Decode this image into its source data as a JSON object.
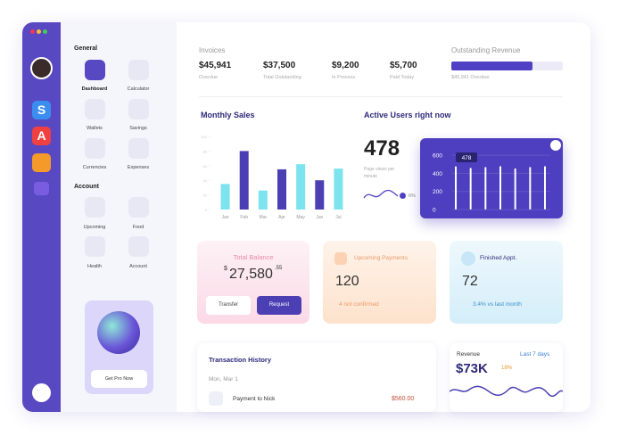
{
  "sidebar": {
    "apps": [
      "S",
      "A"
    ]
  },
  "nav": {
    "general_title": "General",
    "general": [
      "Dashboard",
      "Calculator",
      "Wallets",
      "Savings",
      "Currencies",
      "Expenses"
    ],
    "account_title": "Account",
    "account": [
      "Upcoming",
      "Food",
      "Health",
      "Account"
    ],
    "promo_button": "Get Pro Now"
  },
  "summary": {
    "title": "Invoices",
    "items": [
      {
        "value": "$45,941",
        "label": "Overdue"
      },
      {
        "value": "$37,500",
        "label": "Total Outstanding"
      },
      {
        "value": "$9,200",
        "label": "In Process"
      },
      {
        "value": "$5,700",
        "label": "Paid Today"
      }
    ],
    "outstanding": {
      "title": "Outstanding Revenue",
      "progress": 73,
      "caption": "$45,941 Overdue"
    }
  },
  "chart_data": [
    {
      "type": "bar",
      "title": "Monthly Sales",
      "categories": [
        "Jan",
        "Feb",
        "Mar",
        "Apr",
        "May",
        "Jun",
        "Jul"
      ],
      "values": [
        35,
        80,
        26,
        55,
        62,
        40,
        56
      ],
      "colors": [
        "#7de3ee",
        "#4b3fb3",
        "#7de3ee",
        "#4b3fb3",
        "#7de3ee",
        "#4b3fb3",
        "#7de3ee"
      ],
      "ylim": [
        0,
        100
      ],
      "yticks": [
        0,
        20,
        40,
        60,
        80,
        100
      ]
    },
    {
      "type": "bar",
      "title": "Active Users right now",
      "values": [
        478,
        460,
        470,
        480,
        455,
        470,
        480
      ],
      "color": "#ffffff",
      "ylim": [
        0,
        650
      ],
      "yticks": [
        0,
        200,
        400,
        600
      ],
      "current": "478",
      "caption": "Page views per minute",
      "change": "6%"
    }
  ],
  "cards": {
    "balance": {
      "title": "Total Balance",
      "currency": "$",
      "amount": "27,580",
      "cents": ".55",
      "buttons": [
        "Transfer",
        "Request"
      ]
    },
    "upcoming": {
      "title": "Upcoming Payments",
      "value": "120",
      "note": "4 not confirmed"
    },
    "finished": {
      "title": "Finished Appt.",
      "value": "72",
      "note": "3.4% vs last month"
    }
  },
  "transactions": {
    "title": "Transaction History",
    "date": "Mon, Mar 1",
    "items": [
      {
        "label": "Payment to Nick",
        "amount": "$560.00"
      }
    ]
  },
  "revenue": {
    "title": "Revenue",
    "period": "Last 7 days",
    "value": "$73K",
    "change": "18%"
  }
}
